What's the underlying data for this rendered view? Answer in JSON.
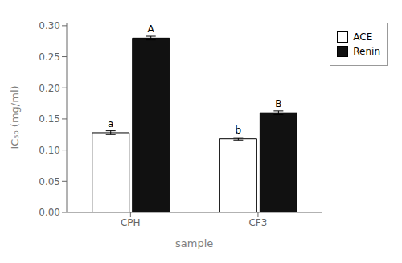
{
  "chart_data": {
    "type": "bar",
    "categories": [
      "CPH",
      "CF3"
    ],
    "series": [
      {
        "name": "ACE",
        "color": "#ffffff",
        "values": [
          0.128,
          0.118
        ],
        "errors": [
          0.003,
          0.002
        ],
        "annotations": [
          "a",
          "b"
        ]
      },
      {
        "name": "Renin",
        "color": "#111111",
        "values": [
          0.28,
          0.16
        ],
        "errors": [
          0.003,
          0.003
        ],
        "annotations": [
          "A",
          "B"
        ]
      }
    ],
    "xlabel": "sample",
    "ylabel": "IC₅₀ (mg/ml)",
    "ylim": [
      0.0,
      0.305
    ],
    "yticks": [
      {
        "value": 0.0,
        "label": "0.00"
      },
      0.05,
      {
        "value": 0.1,
        "label": "0.10"
      },
      0.15,
      {
        "value": 0.2,
        "label": "0.20"
      },
      0.25,
      {
        "value": 0.3,
        "label": "0.30"
      }
    ],
    "grid": false,
    "legend": "right"
  }
}
